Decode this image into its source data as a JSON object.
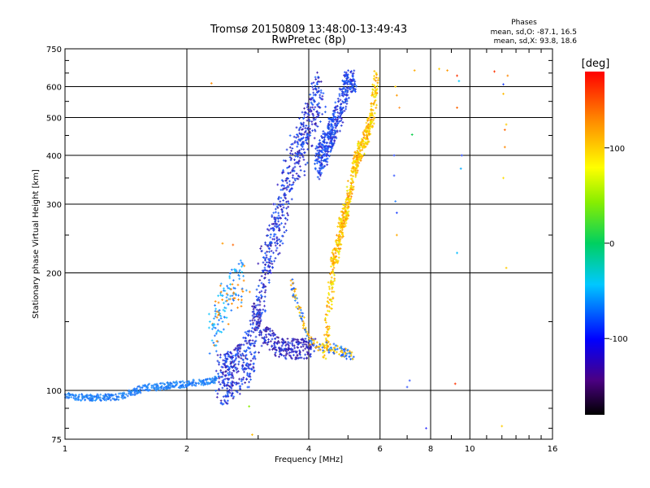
{
  "chart_data": {
    "type": "scatter",
    "title": "Tromsø 20150809 13:48:00-13:49:43",
    "subtitle": "RwPretec (8p)",
    "stats": {
      "heading": "Phases",
      "line_o": "mean, sd,O: -87.1, 16.5",
      "line_x": "mean, sd,X:  93.8, 18.6"
    },
    "xlabel": "Frequency [MHz]",
    "ylabel": "Stationary phase Virtual Height [km]",
    "x_scale": "log",
    "y_scale": "log",
    "xlim": [
      1,
      16
    ],
    "ylim": [
      75,
      750
    ],
    "x_ticks": [
      1,
      2,
      4,
      6,
      8,
      10,
      16
    ],
    "x_tick_labels": [
      "1",
      "2",
      "4",
      "6",
      "8",
      "10",
      "16"
    ],
    "x_minor_ticks": [
      3,
      5,
      7,
      9,
      11,
      12,
      13,
      14,
      15
    ],
    "y_ticks": [
      75,
      100,
      200,
      300,
      400,
      500,
      600,
      750
    ],
    "y_tick_labels": [
      "75",
      "100",
      "200",
      "300",
      "400",
      "500",
      "600",
      "750"
    ],
    "grid": true,
    "colorbar": {
      "label": "[deg]",
      "range": [
        -180,
        180
      ],
      "ticks": [
        100,
        0,
        -100
      ],
      "tick_labels": [
        "100",
        "0",
        "-100"
      ]
    },
    "o_trace": [
      [
        1,
        98
      ],
      [
        1.05,
        96
      ],
      [
        1.1,
        96
      ],
      [
        1.2,
        96
      ],
      [
        1.3,
        96
      ],
      [
        1.4,
        97
      ],
      [
        1.5,
        100
      ],
      [
        1.6,
        102
      ],
      [
        1.7,
        102
      ],
      [
        1.8,
        103
      ],
      [
        2,
        104
      ],
      [
        2.2,
        105
      ],
      [
        2.4,
        107
      ],
      [
        2.6,
        110
      ],
      [
        2.8,
        120
      ],
      [
        2.9,
        130
      ],
      [
        3.0,
        150
      ],
      [
        3.05,
        175
      ],
      [
        3.1,
        200
      ],
      [
        3.2,
        225
      ],
      [
        3.3,
        250
      ],
      [
        3.4,
        280
      ],
      [
        3.5,
        320
      ],
      [
        3.6,
        360
      ],
      [
        3.7,
        400
      ],
      [
        3.8,
        410
      ],
      [
        3.9,
        440
      ],
      [
        4.0,
        480
      ],
      [
        4.1,
        530
      ],
      [
        4.2,
        560
      ],
      [
        4.3,
        600
      ]
    ],
    "o_trace_2": [
      [
        4.2,
        380
      ],
      [
        4.4,
        420
      ],
      [
        4.6,
        470
      ],
      [
        4.8,
        540
      ],
      [
        5.0,
        620
      ],
      [
        5.2,
        650
      ]
    ],
    "o_lower": [
      [
        2.9,
        160
      ],
      [
        3.1,
        140
      ],
      [
        3.3,
        130
      ],
      [
        3.5,
        128
      ],
      [
        3.7,
        128
      ],
      [
        3.9,
        128
      ],
      [
        4.1,
        128
      ]
    ],
    "x_trace": [
      [
        3.8,
        130
      ],
      [
        4.0,
        125
      ],
      [
        4.2,
        122
      ],
      [
        4.4,
        125
      ],
      [
        4.6,
        215
      ],
      [
        4.7,
        230
      ],
      [
        4.8,
        260
      ],
      [
        5.0,
        300
      ],
      [
        5.1,
        340
      ],
      [
        5.2,
        380
      ],
      [
        5.4,
        420
      ],
      [
        5.6,
        460
      ],
      [
        5.75,
        520
      ],
      [
        5.85,
        600
      ],
      [
        5.9,
        650
      ]
    ],
    "x_lower": [
      [
        3.6,
        190
      ],
      [
        3.8,
        160
      ],
      [
        4.0,
        135
      ],
      [
        4.2,
        130
      ],
      [
        4.4,
        130
      ],
      [
        4.6,
        128
      ],
      [
        4.8,
        126
      ],
      [
        5.0,
        124
      ],
      [
        5.2,
        122
      ]
    ],
    "scatter_points": [
      [
        2.3,
        612,
        "#ff8c00"
      ],
      [
        2.45,
        238,
        "#ff9900"
      ],
      [
        2.6,
        236,
        "#ff6600"
      ],
      [
        2.85,
        91,
        "#88ee00"
      ],
      [
        2.9,
        77,
        "#ffbb00"
      ],
      [
        6.55,
        600,
        "#ffcc00"
      ],
      [
        6.6,
        570,
        "#ff9900"
      ],
      [
        6.7,
        530,
        "#ff9933"
      ],
      [
        6.5,
        400,
        "#2244ff"
      ],
      [
        6.5,
        355,
        "#3355ff"
      ],
      [
        6.55,
        305,
        "#3388ff"
      ],
      [
        6.6,
        285,
        "#2244ff"
      ],
      [
        6.6,
        250,
        "#ffaa00"
      ],
      [
        7.2,
        452,
        "#00cc44"
      ],
      [
        7.3,
        660,
        "#ffaa00"
      ],
      [
        7.8,
        80,
        "#4444ff"
      ],
      [
        8.4,
        666,
        "#ffcc00"
      ],
      [
        8.8,
        660,
        "#ff9900"
      ],
      [
        9.3,
        640,
        "#ff3300"
      ],
      [
        9.3,
        530,
        "#ff6600"
      ],
      [
        9.4,
        620,
        "#00ccff"
      ],
      [
        9.3,
        225,
        "#00bbff"
      ],
      [
        9.5,
        370,
        "#00aaff"
      ],
      [
        9.55,
        400,
        "#2244ff"
      ],
      [
        9.2,
        104,
        "#ff3300"
      ],
      [
        11.5,
        656,
        "#ff3300"
      ],
      [
        12.1,
        608,
        "#2244ff"
      ],
      [
        12.1,
        575,
        "#ffbb00"
      ],
      [
        12.2,
        465,
        "#ff6600"
      ],
      [
        12.2,
        420,
        "#ff8800"
      ],
      [
        12.3,
        480,
        "#ffcc00"
      ],
      [
        12.1,
        350,
        "#ffdd00"
      ],
      [
        12.3,
        206,
        "#ffcc00"
      ],
      [
        12.0,
        81,
        "#ffcc00"
      ],
      [
        12.4,
        640,
        "#ff8800"
      ],
      [
        7.1,
        106,
        "#3355ff"
      ],
      [
        7.0,
        102,
        "#3355ff"
      ]
    ]
  }
}
